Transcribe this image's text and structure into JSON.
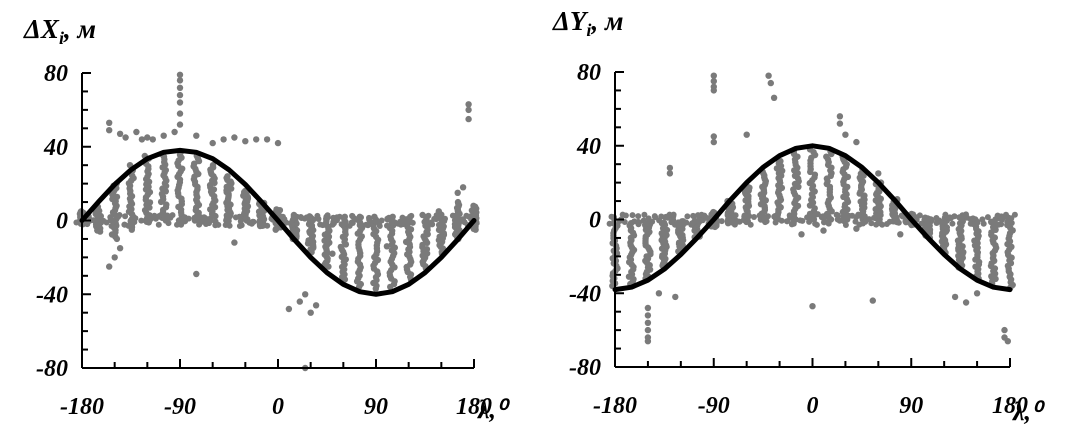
{
  "chart_data": [
    {
      "type": "scatter",
      "title": "ΔX",
      "title_sub": "i",
      "title_unit": ", м",
      "xlabel": "λ,⁰",
      "ylabel": "",
      "xlim": [
        -180,
        180
      ],
      "ylim": [
        -80,
        80
      ],
      "xticks": [
        -180,
        -90,
        0,
        90,
        180
      ],
      "yticks": [
        80,
        40,
        0,
        -40,
        -80
      ],
      "grid": false,
      "colors": {
        "points": "#7a7a7a",
        "curve": "#000000"
      },
      "curve": {
        "x": [
          -180,
          -165,
          -150,
          -135,
          -120,
          -105,
          -90,
          -75,
          -60,
          -45,
          -30,
          -15,
          0,
          15,
          30,
          45,
          60,
          75,
          90,
          105,
          120,
          135,
          150,
          165,
          180
        ],
        "y": [
          0,
          10,
          19.5,
          27.5,
          33.5,
          37,
          38,
          37,
          33.5,
          27.5,
          19.5,
          10,
          0,
          -10.3,
          -20,
          -28.3,
          -34.6,
          -38.6,
          -40,
          -38.6,
          -34.6,
          -28.3,
          -20,
          -10.3,
          0
        ]
      },
      "point_clusters": [
        {
          "x": -180,
          "ymin": -2,
          "ymax": 5
        },
        {
          "x": -165,
          "ymin": -6,
          "ymax": 8
        },
        {
          "x": -150,
          "ymin": -10,
          "ymax": 20
        },
        {
          "x": -135,
          "ymin": -5,
          "ymax": 30
        },
        {
          "x": -120,
          "ymin": 0,
          "ymax": 35
        },
        {
          "x": -105,
          "ymin": 0,
          "ymax": 36
        },
        {
          "x": -90,
          "ymin": 0,
          "ymax": 37
        },
        {
          "x": -75,
          "ymin": 0,
          "ymax": 35
        },
        {
          "x": -60,
          "ymin": 0,
          "ymax": 30
        },
        {
          "x": -45,
          "ymin": 0,
          "ymax": 24
        },
        {
          "x": -30,
          "ymin": 0,
          "ymax": 16
        },
        {
          "x": -15,
          "ymin": -3,
          "ymax": 10
        },
        {
          "x": 0,
          "ymin": -5,
          "ymax": 6
        },
        {
          "x": 15,
          "ymin": -10,
          "ymax": 3
        },
        {
          "x": 30,
          "ymin": -18,
          "ymax": 2
        },
        {
          "x": 45,
          "ymin": -25,
          "ymax": 2
        },
        {
          "x": 60,
          "ymin": -32,
          "ymax": 2
        },
        {
          "x": 75,
          "ymin": -36,
          "ymax": 2
        },
        {
          "x": 90,
          "ymin": -37,
          "ymax": 2
        },
        {
          "x": 105,
          "ymin": -36,
          "ymax": 2
        },
        {
          "x": 120,
          "ymin": -32,
          "ymax": 2
        },
        {
          "x": 135,
          "ymin": -26,
          "ymax": 3
        },
        {
          "x": 150,
          "ymin": -18,
          "ymax": 5
        },
        {
          "x": 165,
          "ymin": -10,
          "ymax": 10
        },
        {
          "x": 180,
          "ymin": -5,
          "ymax": 8
        }
      ],
      "outliers": [
        [
          -90,
          79
        ],
        [
          -90,
          76
        ],
        [
          -90,
          72
        ],
        [
          -90,
          68
        ],
        [
          -90,
          64
        ],
        [
          -90,
          58
        ],
        [
          -90,
          52
        ],
        [
          -155,
          53
        ],
        [
          -155,
          49
        ],
        [
          -145,
          47
        ],
        [
          -140,
          45
        ],
        [
          -130,
          48
        ],
        [
          -125,
          44
        ],
        [
          -120,
          45
        ],
        [
          -115,
          44
        ],
        [
          -105,
          46
        ],
        [
          -95,
          48
        ],
        [
          -75,
          46
        ],
        [
          -60,
          42
        ],
        [
          -50,
          44
        ],
        [
          -40,
          45
        ],
        [
          -30,
          43
        ],
        [
          -20,
          44
        ],
        [
          -10,
          44
        ],
        [
          0,
          42
        ],
        [
          -155,
          -25
        ],
        [
          -150,
          -20
        ],
        [
          -145,
          -15
        ],
        [
          -75,
          -29
        ],
        [
          -40,
          -12
        ],
        [
          10,
          -48
        ],
        [
          20,
          -44
        ],
        [
          25,
          -40
        ],
        [
          30,
          -50
        ],
        [
          35,
          -46
        ],
        [
          25,
          -80
        ],
        [
          50,
          -18
        ],
        [
          60,
          -20
        ],
        [
          100,
          -14
        ],
        [
          120,
          -12
        ],
        [
          175,
          63
        ],
        [
          175,
          60
        ],
        [
          175,
          55
        ],
        [
          170,
          18
        ],
        [
          165,
          15
        ]
      ]
    },
    {
      "type": "scatter",
      "title": "ΔY",
      "title_sub": "i",
      "title_unit": ", м",
      "xlabel": "λ,⁰",
      "ylabel": "",
      "xlim": [
        -180,
        180
      ],
      "ylim": [
        -80,
        80
      ],
      "xticks": [
        -180,
        -90,
        0,
        90,
        180
      ],
      "yticks": [
        80,
        40,
        0,
        -40,
        -80
      ],
      "grid": false,
      "colors": {
        "points": "#7a7a7a",
        "curve": "#000000"
      },
      "curve": {
        "x": [
          -180,
          -165,
          -150,
          -135,
          -120,
          -105,
          -90,
          -75,
          -60,
          -45,
          -30,
          -15,
          0,
          15,
          30,
          45,
          60,
          75,
          90,
          105,
          120,
          135,
          150,
          165,
          180
        ],
        "y": [
          -38,
          -36.7,
          -32.9,
          -26.9,
          -19,
          -9.8,
          0,
          10.4,
          20,
          28.3,
          34.6,
          38.6,
          40,
          38.6,
          34.6,
          28.3,
          20,
          10.4,
          0,
          -9.8,
          -19,
          -26.9,
          -32.9,
          -36.7,
          -38
        ]
      },
      "point_clusters": [
        {
          "x": -180,
          "ymin": -36,
          "ymax": -2
        },
        {
          "x": -165,
          "ymin": -35,
          "ymax": -2
        },
        {
          "x": -150,
          "ymin": -32,
          "ymax": -2
        },
        {
          "x": -135,
          "ymin": -25,
          "ymax": -2
        },
        {
          "x": -120,
          "ymin": -18,
          "ymax": -1
        },
        {
          "x": -105,
          "ymin": -10,
          "ymax": 0
        },
        {
          "x": -90,
          "ymin": -4,
          "ymax": 4
        },
        {
          "x": -75,
          "ymin": -2,
          "ymax": 10
        },
        {
          "x": -60,
          "ymin": -1,
          "ymax": 18
        },
        {
          "x": -45,
          "ymin": 0,
          "ymax": 26
        },
        {
          "x": -30,
          "ymin": 0,
          "ymax": 33
        },
        {
          "x": -15,
          "ymin": 0,
          "ymax": 37
        },
        {
          "x": 0,
          "ymin": 0,
          "ymax": 38
        },
        {
          "x": 15,
          "ymin": 0,
          "ymax": 37
        },
        {
          "x": 30,
          "ymin": 0,
          "ymax": 34
        },
        {
          "x": 45,
          "ymin": 0,
          "ymax": 27
        },
        {
          "x": 60,
          "ymin": 0,
          "ymax": 20
        },
        {
          "x": 75,
          "ymin": -1,
          "ymax": 11
        },
        {
          "x": 90,
          "ymin": -3,
          "ymax": 3
        },
        {
          "x": 105,
          "ymin": -10,
          "ymax": 1
        },
        {
          "x": 120,
          "ymin": -18,
          "ymax": 1
        },
        {
          "x": 135,
          "ymin": -26,
          "ymax": 0
        },
        {
          "x": 150,
          "ymin": -32,
          "ymax": 0
        },
        {
          "x": 165,
          "ymin": -35,
          "ymax": 0
        },
        {
          "x": 180,
          "ymin": -37,
          "ymax": 0
        }
      ],
      "outliers": [
        [
          -90,
          78
        ],
        [
          -90,
          75
        ],
        [
          -90,
          72
        ],
        [
          -90,
          70
        ],
        [
          -90,
          45
        ],
        [
          -90,
          42
        ],
        [
          -40,
          78
        ],
        [
          -38,
          74
        ],
        [
          -35,
          66
        ],
        [
          -60,
          46
        ],
        [
          -130,
          28
        ],
        [
          -130,
          25
        ],
        [
          -150,
          -48
        ],
        [
          -150,
          -52
        ],
        [
          -150,
          -56
        ],
        [
          -150,
          -60
        ],
        [
          -150,
          -64
        ],
        [
          -150,
          -66
        ],
        [
          -140,
          -40
        ],
        [
          -125,
          -42
        ],
        [
          0,
          -47
        ],
        [
          55,
          -44
        ],
        [
          25,
          56
        ],
        [
          25,
          52
        ],
        [
          30,
          46
        ],
        [
          40,
          42
        ],
        [
          60,
          25
        ],
        [
          175,
          -60
        ],
        [
          175,
          -64
        ],
        [
          178,
          -66
        ],
        [
          130,
          -42
        ],
        [
          140,
          -45
        ],
        [
          150,
          -40
        ],
        [
          -10,
          -8
        ],
        [
          10,
          -6
        ],
        [
          40,
          -5
        ],
        [
          80,
          -8
        ]
      ]
    }
  ]
}
